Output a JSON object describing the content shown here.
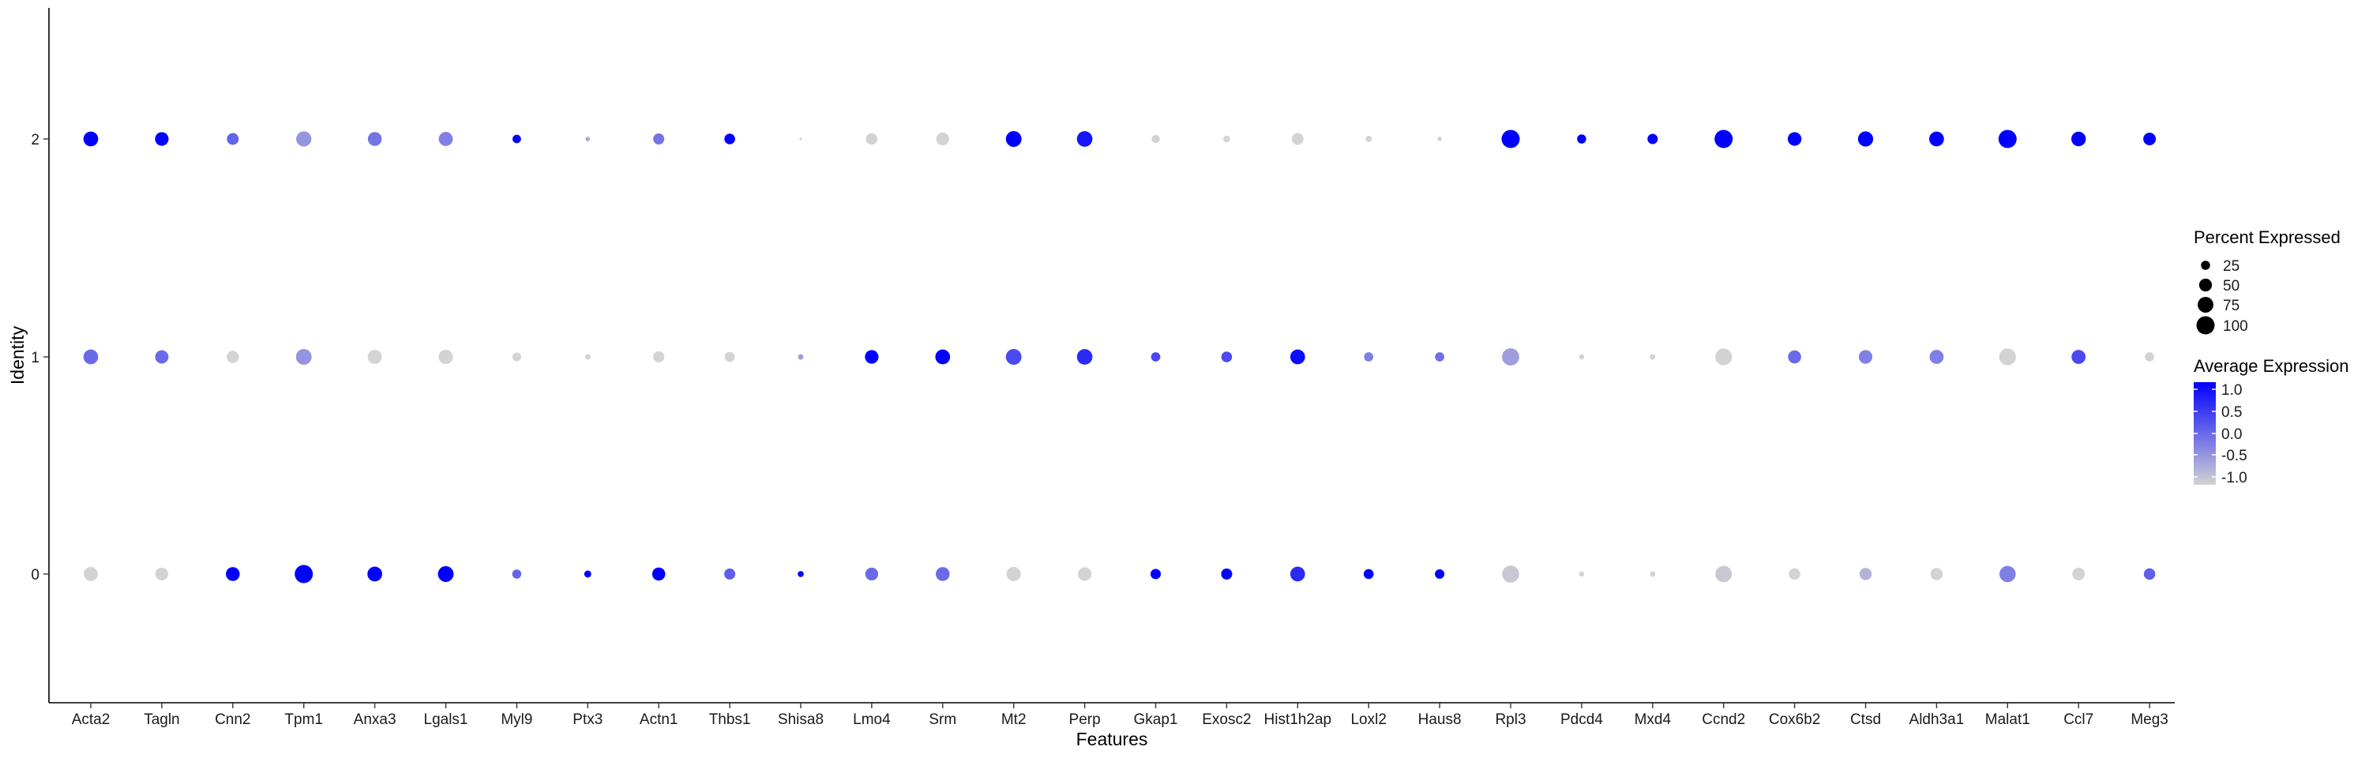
{
  "chart_data": {
    "type": "dotplot",
    "title": "",
    "xlabel": "Features",
    "ylabel": "Identity",
    "features": [
      "Acta2",
      "Tagln",
      "Cnn2",
      "Tpm1",
      "Anxa3",
      "Lgals1",
      "Myl9",
      "Ptx3",
      "Actn1",
      "Thbs1",
      "Shisa8",
      "Lmo4",
      "Srm",
      "Mt2",
      "Perp",
      "Gkap1",
      "Exosc2",
      "Hist1h2ap",
      "Loxl2",
      "Haus8",
      "Rpl3",
      "Pdcd4",
      "Mxd4",
      "Ccnd2",
      "Cox6b2",
      "Ctsd",
      "Aldh3a1",
      "Malat1",
      "Ccl7",
      "Meg3"
    ],
    "identities": [
      "0",
      "1",
      "2"
    ],
    "percent_expressed": {
      "2": [
        66,
        56,
        42,
        70,
        58,
        60,
        22,
        6,
        37,
        35,
        2,
        40,
        50,
        75,
        73,
        20,
        14,
        42,
        12,
        6,
        100,
        25,
        32,
        100,
        57,
        70,
        66,
        100,
        64,
        48
      ],
      "1": [
        66,
        54,
        45,
        75,
        60,
        62,
        23,
        9,
        38,
        30,
        9,
        56,
        66,
        75,
        73,
        26,
        35,
        66,
        26,
        26,
        90,
        8,
        9,
        86,
        52,
        56,
        60,
        86,
        60,
        26
      ],
      "0": [
        60,
        50,
        58,
        100,
        66,
        75,
        25,
        15,
        52,
        37,
        11,
        50,
        58,
        62,
        56,
        32,
        37,
        66,
        30,
        27,
        88,
        8,
        9,
        82,
        40,
        45,
        45,
        80,
        48,
        40
      ]
    },
    "average_expression": {
      "2": [
        1.05,
        0.97,
        0.05,
        -0.4,
        -0.1,
        -0.2,
        1.05,
        -0.6,
        -0.1,
        1.05,
        -1.0,
        -1.05,
        -1.05,
        1.05,
        0.8,
        -1.05,
        -1.05,
        -1.05,
        -1.05,
        -1.05,
        1.05,
        1.05,
        1.05,
        1.05,
        1.05,
        1.05,
        1.05,
        1.05,
        1.05,
        1.05
      ],
      "1": [
        0.0,
        0.0,
        -1.05,
        -0.4,
        -1.05,
        -1.05,
        -1.05,
        -1.05,
        -1.05,
        -1.05,
        -0.5,
        1.05,
        1.05,
        0.3,
        0.6,
        0.3,
        0.3,
        0.9,
        -0.2,
        -0.05,
        -0.5,
        -1.05,
        -1.05,
        -1.05,
        0.0,
        -0.2,
        -0.2,
        -1.05,
        0.3,
        -1.05
      ],
      "0": [
        -1.05,
        -1.05,
        1.05,
        1.05,
        1.05,
        1.05,
        0.05,
        1.05,
        1.05,
        0.1,
        1.05,
        0.0,
        0.0,
        -1.05,
        -1.05,
        1.05,
        1.05,
        0.6,
        1.05,
        1.05,
        -0.9,
        -1.05,
        -1.05,
        -0.9,
        -1.05,
        -0.7,
        -1.05,
        -0.2,
        -1.05,
        0.1
      ]
    },
    "size_legend": {
      "title": "Percent Expressed",
      "breaks": [
        25,
        50,
        75,
        100
      ]
    },
    "color_legend": {
      "title": "Average Expression",
      "breaks": [
        "1.0",
        "0.5",
        "0.0",
        "-0.5",
        "-1.0"
      ],
      "low": "#d3d3d3",
      "high": "#0000ff",
      "range": [
        -1.0,
        1.0
      ]
    },
    "ylim": [
      -0.6,
      2.6
    ],
    "grid": false
  }
}
